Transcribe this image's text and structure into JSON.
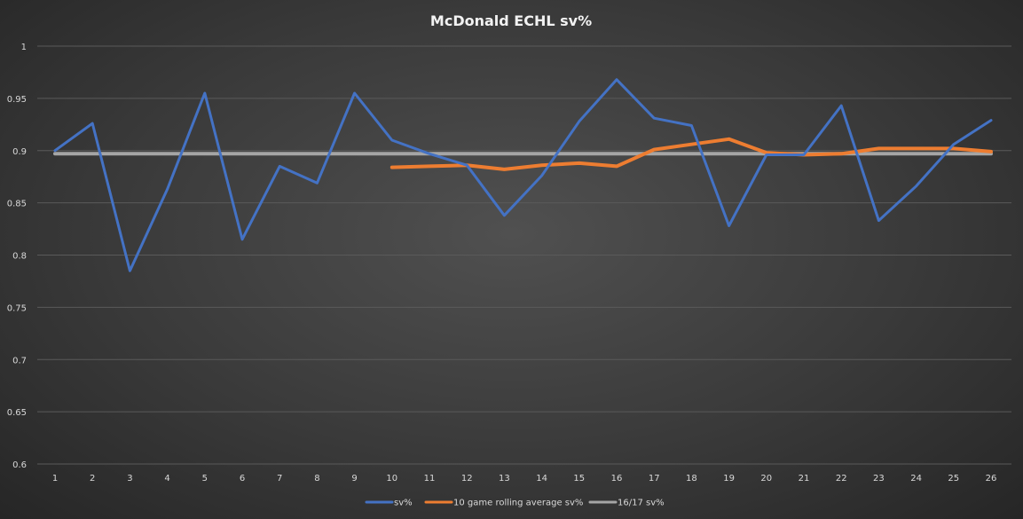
{
  "chart_data": {
    "type": "line",
    "title": "McDonald  ECHL sv%",
    "xlabel": "",
    "ylabel": "",
    "ylim": [
      0.6,
      1
    ],
    "yticks": [
      "0.6",
      "0.65",
      "0.7",
      "0.75",
      "0.8",
      "0.85",
      "0.9",
      "0.95",
      "1"
    ],
    "grid": true,
    "legend_position": "bottom",
    "categories": [
      "1",
      "2",
      "3",
      "4",
      "5",
      "6",
      "7",
      "8",
      "9",
      "10",
      "11",
      "12",
      "13",
      "14",
      "15",
      "16",
      "17",
      "18",
      "19",
      "20",
      "21",
      "22",
      "23",
      "24",
      "25",
      "26"
    ],
    "series": [
      {
        "name": "sv%",
        "color": "#4472c4",
        "values": [
          0.9,
          0.926,
          0.785,
          0.863,
          0.955,
          0.815,
          0.885,
          0.869,
          0.955,
          0.91,
          0.897,
          0.886,
          0.838,
          0.876,
          0.928,
          0.968,
          0.931,
          0.924,
          0.828,
          0.896,
          0.896,
          0.943,
          0.833,
          0.866,
          0.906,
          0.929
        ]
      },
      {
        "name": "10 game rolling average sv%",
        "color": "#ed7d31",
        "values": [
          null,
          null,
          null,
          null,
          null,
          null,
          null,
          null,
          null,
          0.884,
          0.885,
          0.886,
          0.882,
          0.886,
          0.888,
          0.885,
          0.901,
          0.906,
          0.911,
          0.898,
          0.896,
          0.897,
          0.902,
          0.902,
          0.902,
          0.899
        ]
      },
      {
        "name": "16/17 sv%",
        "color": "#a5a5a5",
        "values": [
          0.897,
          0.897,
          0.897,
          0.897,
          0.897,
          0.897,
          0.897,
          0.897,
          0.897,
          0.897,
          0.897,
          0.897,
          0.897,
          0.897,
          0.897,
          0.897,
          0.897,
          0.897,
          0.897,
          0.897,
          0.897,
          0.897,
          0.897,
          0.897,
          0.897,
          0.897
        ]
      }
    ]
  }
}
